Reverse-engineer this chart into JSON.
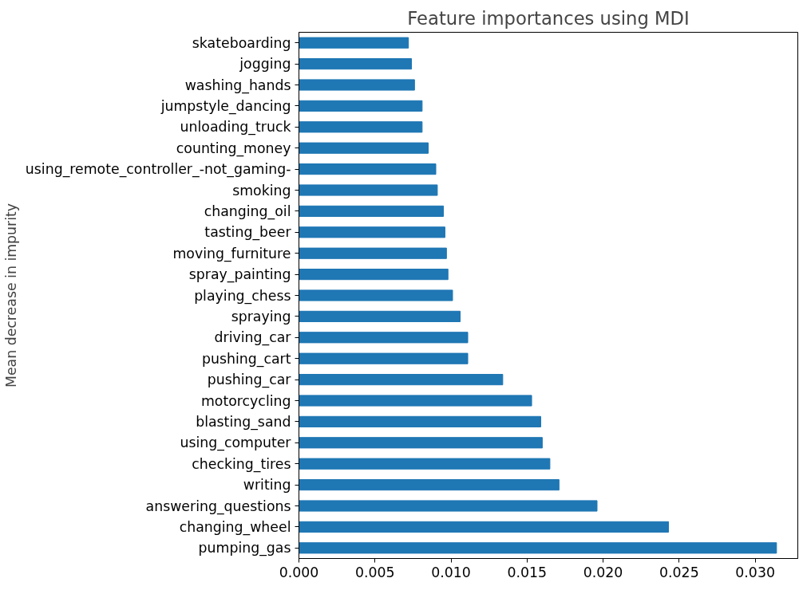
{
  "chart_data": {
    "type": "bar",
    "orientation": "horizontal",
    "title": "Feature importances using MDI",
    "ylabel": "Mean decrease in impurity",
    "categories": [
      "skateboarding",
      "jogging",
      "washing_hands",
      "jumpstyle_dancing",
      "unloading_truck",
      "counting_money",
      "using_remote_controller_-not_gaming-",
      "smoking",
      "changing_oil",
      "tasting_beer",
      "moving_furniture",
      "spray_painting",
      "playing_chess",
      "spraying",
      "driving_car",
      "pushing_cart",
      "pushing_car",
      "motorcycling",
      "blasting_sand",
      "using_computer",
      "checking_tires",
      "writing",
      "answering_questions",
      "changing_wheel",
      "pumping_gas"
    ],
    "values": [
      0.0072,
      0.0074,
      0.0076,
      0.0081,
      0.0081,
      0.0085,
      0.009,
      0.0091,
      0.0095,
      0.0096,
      0.0097,
      0.0098,
      0.0101,
      0.0106,
      0.0111,
      0.0111,
      0.0134,
      0.0153,
      0.0159,
      0.016,
      0.0165,
      0.0171,
      0.0196,
      0.0243,
      0.0314
    ],
    "color": "#1f77b4",
    "xlim": [
      0,
      0.0328
    ],
    "xticks": [
      {
        "value": 0,
        "label": "0.000"
      },
      {
        "value": 0.005,
        "label": "0.005"
      },
      {
        "value": 0.01,
        "label": "0.010"
      },
      {
        "value": 0.015,
        "label": "0.015"
      },
      {
        "value": 0.02,
        "label": "0.020"
      },
      {
        "value": 0.025,
        "label": "0.025"
      },
      {
        "value": 0.03,
        "label": "0.030"
      }
    ],
    "grid": false
  }
}
